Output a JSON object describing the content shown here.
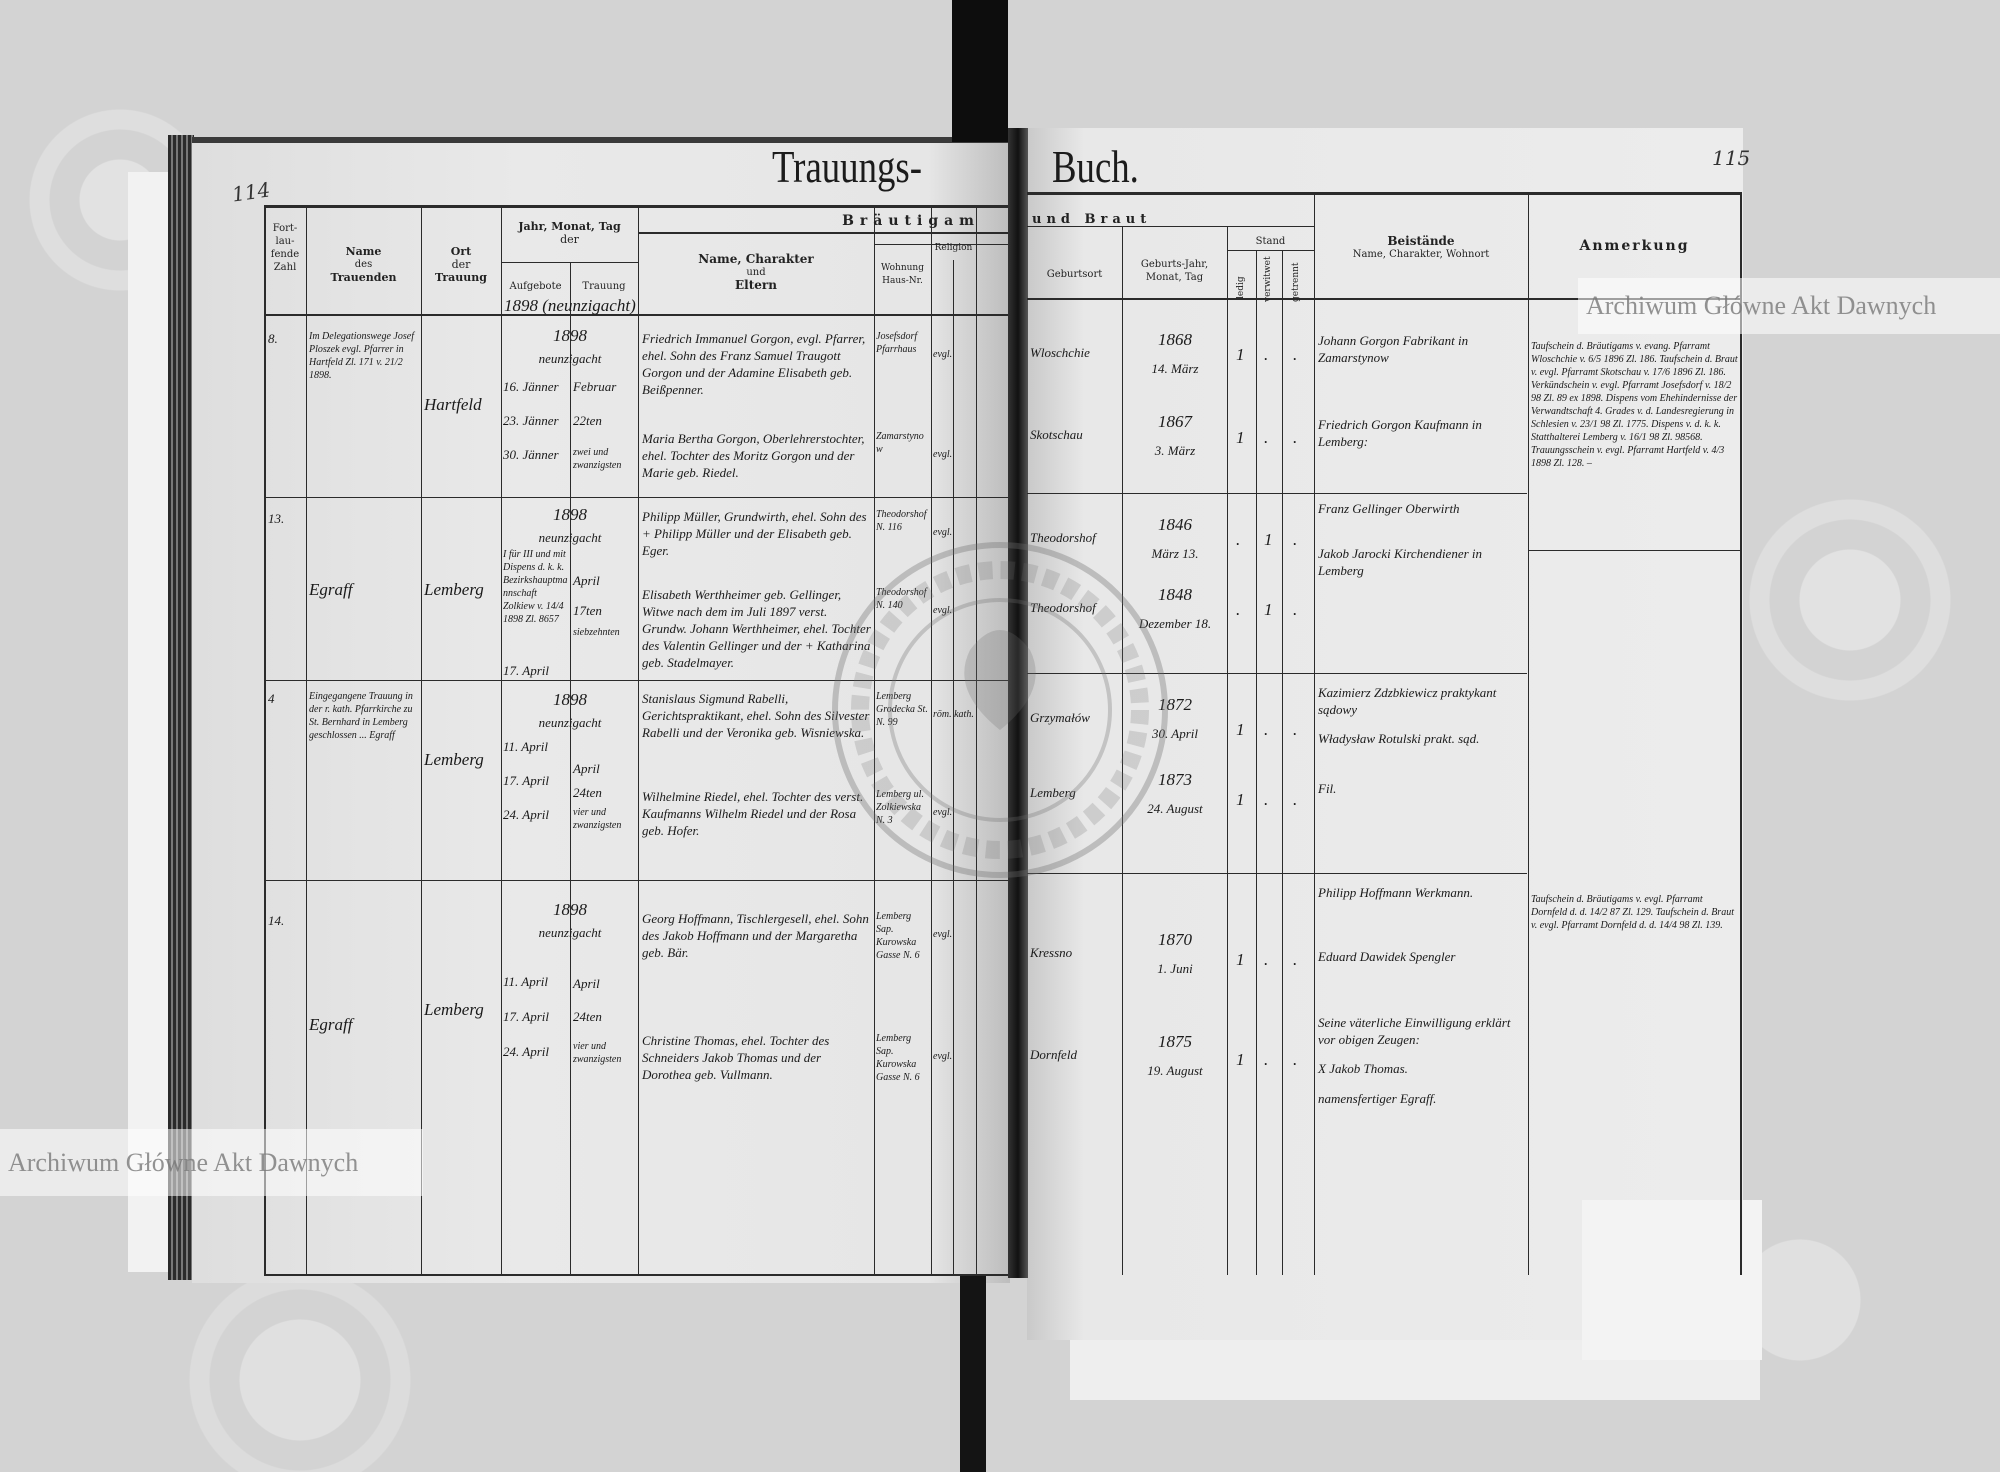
{
  "page_numbers": {
    "left": "114",
    "right": "115"
  },
  "title": {
    "left": "Trauungs-",
    "right": "Buch."
  },
  "watermark": {
    "text": "Archiwum Główne Akt Dawnych",
    "stamp_text": "ARCHIWUM GŁÓWNE AKT DAWNYCH"
  },
  "headers": {
    "fortlaufende_zahl": "Fort-lau-fende Zahl",
    "name_trauenden": [
      "Name",
      "des",
      "Trauenden"
    ],
    "ort_trauung": [
      "Ort",
      "der",
      "Trauung"
    ],
    "datum": [
      "Jahr, Monat, Tag",
      "der"
    ],
    "aufgebote": "Aufgebote",
    "trauung": "Trauung",
    "braeutigam": "Bräutigam",
    "und_braut": "und Braut",
    "name_charakter": [
      "Name, Charakter",
      "und",
      "Eltern"
    ],
    "wohnung": "Wohnung Haus-Nr.",
    "religion": "Religion",
    "geburtsort": "Geburtsort",
    "geburts_datum": "Geburts-Jahr, Monat, Tag",
    "stand": "Stand",
    "ledig": "ledig",
    "verwitwet": "verwitwet",
    "getrennt": "getrennt",
    "beistaende": "Beistände",
    "beistaende_sub": "Name, Charakter, Wohnort",
    "anmerkung": "Anmerkung"
  },
  "year_note": "1898 (neunzigacht)",
  "entries": [
    {
      "number": "8.",
      "name_trauenden": "Im Delegationswege Josef Ploszek evgl. Pfarrer in Hartfeld Zl. 171 v. 21/2 1898.",
      "ort_trauung": "Hartfeld",
      "year": "1898",
      "year_words": "neunzigacht",
      "aufgebote": [
        "16. Jänner",
        "23. Jänner",
        "30. Jänner"
      ],
      "trauung": [
        "Februar",
        "22ten",
        "zwei und zwanzigsten"
      ],
      "groom": {
        "text": "Friedrich Immanuel Gorgon, evgl. Pfarrer, ehel. Sohn des Franz Samuel Traugott Gorgon und der Adamine Elisabeth geb. Beißpenner.",
        "wohnung": "Josefsdorf Pfarrhaus",
        "religion": "evgl.",
        "geburtsort": "Wloschchie",
        "jahr": "1868",
        "tag": "14. März",
        "stand": "ledig"
      },
      "bride": {
        "text": "Maria Bertha Gorgon, Oberlehrerstochter, ehel. Tochter des Moritz Gorgon und der Marie geb. Riedel.",
        "wohnung": "Zamarstynow",
        "religion": "evgl.",
        "geburtsort": "Skotschau",
        "jahr": "1867",
        "tag": "3. März",
        "stand": "ledig"
      },
      "beistaende": [
        "Johann Gorgon Fabrikant in Zamarstynow",
        "Friedrich Gorgon Kaufmann in Lemberg:"
      ],
      "anmerkung": "Taufschein d. Bräutigams v. evang. Pfarramt Wloschchie v. 6/5 1896 Zl. 186. Taufschein d. Braut v. evgl. Pfarramt Skotschau v. 17/6 1896 Zl. 186. Verkündschein v. evgl. Pfarramt Josefsdorf v. 18/2 98 Zl. 89 ex 1898. Dispens vom Ehehindernisse der Verwandtschaft 4. Grades v. d. Landesregierung in Schlesien v. 23/1 98 Zl. 1775. Dispens v. d. k. k. Statthalterei Lemberg v. 16/1 98 Zl. 98568. Trauungsschein v. evgl. Pfarramt Hartfeld v. 4/3 1898 Zl. 128. –"
    },
    {
      "number": "13.",
      "name_trauenden": "Egraff",
      "ort_trauung": "Lemberg",
      "year": "1898",
      "year_words": "neunzigacht",
      "aufgebote": [
        "I für III und mit Dispens d. k. k. Bezirkshauptmannschaft Zolkiew v. 14/4 1898 Zl. 8657",
        "17. April"
      ],
      "trauung": [
        "April",
        "17ten",
        "siebzehnten"
      ],
      "groom": {
        "text": "Philipp Müller, Grundwirth, ehel. Sohn des + Philipp Müller und der Elisabeth geb. Eger.",
        "wohnung": "Theodorshof N. 116",
        "religion": "evgl.",
        "geburtsort": "Theodorshof",
        "jahr": "1846",
        "tag": "März 13.",
        "stand": "verwitwet"
      },
      "bride": {
        "text": "Elisabeth Werthheimer geb. Gellinger, Witwe nach dem im Juli 1897 verst. Grundw. Johann Werthheimer, ehel. Tochter des Valentin Gellinger und der + Katharina geb. Stadelmayer.",
        "wohnung": "Theodorshof N. 140",
        "religion": "evgl.",
        "geburtsort": "Theodorshof",
        "jahr": "1848",
        "tag": "Dezember 18.",
        "stand": "verwitwet"
      },
      "beistaende": [
        "Franz Gellinger Oberwirth",
        "Jakob Jarocki Kirchendiener in Lemberg"
      ],
      "anmerkung": ""
    },
    {
      "number": "4",
      "name_trauenden": "Eingegangene Trauung in der r. kath. Pfarrkirche zu St. Bernhard in Lemberg geschlossen ... Egraff",
      "ort_trauung": "Lemberg",
      "year": "1898",
      "year_words": "neunzigacht",
      "aufgebote": [
        "11. April",
        "17. April",
        "24. April"
      ],
      "trauung": [
        "April",
        "24ten",
        "vier und zwanzigsten"
      ],
      "groom": {
        "text": "Stanislaus Sigmund Rabelli, Gerichtspraktikant, ehel. Sohn des Silvester Rabelli und der Veronika geb. Wisniewska.",
        "wohnung": "Lemberg Grodecka St. N. 99",
        "religion": "röm. kath.",
        "geburtsort": "Grzymałów",
        "jahr": "1872",
        "tag": "30. April",
        "stand": "ledig"
      },
      "bride": {
        "text": "Wilhelmine Riedel, ehel. Tochter des verst. Kaufmanns Wilhelm Riedel und der Rosa geb. Hofer.",
        "wohnung": "Lemberg ul. Zolkiewska N. 3",
        "religion": "evgl.",
        "geburtsort": "Lemberg",
        "jahr": "1873",
        "tag": "24. August",
        "stand": "ledig"
      },
      "beistaende": [
        "Kazimierz Zdzbkiewicz praktykant sądowy",
        "Władysław Rotulski prakt. sąd.",
        "Fil."
      ],
      "anmerkung": ""
    },
    {
      "number": "14.",
      "name_trauenden": "Egraff",
      "ort_trauung": "Lemberg",
      "year": "1898",
      "year_words": "neunzigacht",
      "aufgebote": [
        "11. April",
        "17. April",
        "24. April"
      ],
      "trauung": [
        "April",
        "24ten",
        "vier und zwanzigsten"
      ],
      "groom": {
        "text": "Georg Hoffmann, Tischlergesell, ehel. Sohn des Jakob Hoffmann und der Margaretha geb. Bär.",
        "wohnung": "Lemberg Sap. Kurowska Gasse N. 6",
        "religion": "evgl.",
        "geburtsort": "Kressno",
        "jahr": "1870",
        "tag": "1. Juni",
        "stand": "ledig"
      },
      "bride": {
        "text": "Christine Thomas, ehel. Tochter des Schneiders Jakob Thomas und der Dorothea geb. Vullmann.",
        "wohnung": "Lemberg Sap. Kurowska Gasse N. 6",
        "religion": "evgl.",
        "geburtsort": "Dornfeld",
        "jahr": "1875",
        "tag": "19. August",
        "stand": "ledig"
      },
      "beistaende": [
        "Philipp Hoffmann Werkmann.",
        "Eduard Dawidek Spengler",
        "Seine väterliche Einwilligung erklärt vor obigen Zeugen:",
        "X Jakob Thomas.",
        "namensfertiger Egraff."
      ],
      "anmerkung": "Taufschein d. Bräutigams v. evgl. Pfarramt Dornfeld d. d. 14/2 87 Zl. 129. Taufschein d. Braut v. evgl. Pfarramt Dornfeld d. d. 14/4 98 Zl. 139."
    }
  ]
}
